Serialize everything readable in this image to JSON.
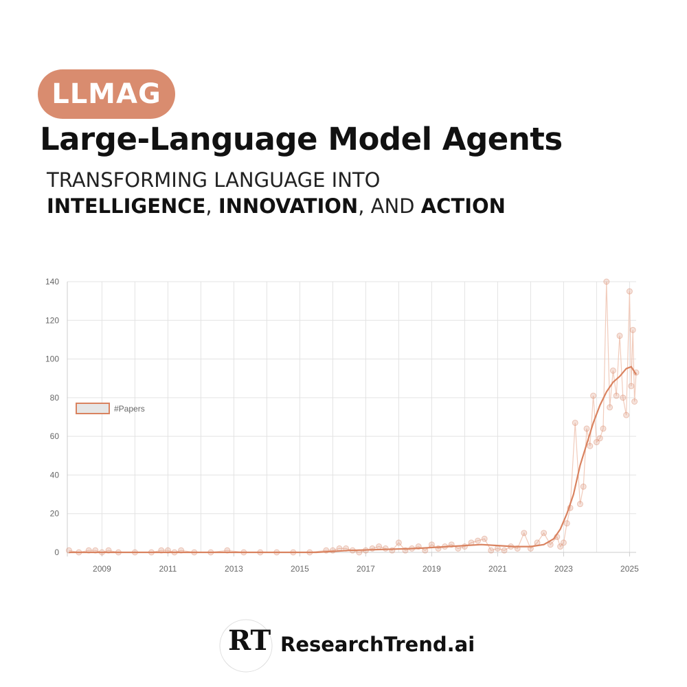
{
  "header": {
    "badge": "LLMAG",
    "title": "Large-Language Model Agents",
    "subtitle_line1": "TRANSFORMING LANGUAGE INTO",
    "subtitle_word1": "INTELLIGENCE",
    "subtitle_sep1": ", ",
    "subtitle_word2": "INNOVATION",
    "subtitle_sep2": ", AND ",
    "subtitle_word3": "ACTION"
  },
  "colors": {
    "accent": "#d98c6f",
    "trend_line": "#d9825f",
    "raw_line": "#f1cbbb",
    "grid": "#e3e3e3"
  },
  "chart_data": {
    "type": "line",
    "legend": {
      "label": "#Papers",
      "position": "left"
    },
    "grid": true,
    "xlim": [
      2007.95,
      2025.2
    ],
    "ylim": [
      0,
      140
    ],
    "x_ticks": [
      "2009",
      "2011",
      "2013",
      "2015",
      "2017",
      "2019",
      "2021",
      "2023",
      "2025"
    ],
    "y_ticks": [
      "0",
      "20",
      "40",
      "60",
      "80",
      "100",
      "120",
      "140"
    ],
    "series": [
      {
        "name": "#Papers",
        "style": "raw",
        "points": [
          [
            2008.0,
            1
          ],
          [
            2008.3,
            0
          ],
          [
            2008.6,
            1
          ],
          [
            2008.8,
            1
          ],
          [
            2009.0,
            0
          ],
          [
            2009.2,
            1
          ],
          [
            2009.5,
            0
          ],
          [
            2010.0,
            0
          ],
          [
            2010.5,
            0
          ],
          [
            2010.8,
            1
          ],
          [
            2011.0,
            1
          ],
          [
            2011.2,
            0
          ],
          [
            2011.4,
            1
          ],
          [
            2011.8,
            0
          ],
          [
            2012.3,
            0
          ],
          [
            2012.8,
            1
          ],
          [
            2013.3,
            0
          ],
          [
            2013.8,
            0
          ],
          [
            2014.3,
            0
          ],
          [
            2014.8,
            0
          ],
          [
            2015.3,
            0
          ],
          [
            2015.8,
            1
          ],
          [
            2016.0,
            1
          ],
          [
            2016.2,
            2
          ],
          [
            2016.4,
            2
          ],
          [
            2016.6,
            1
          ],
          [
            2016.8,
            0
          ],
          [
            2017.0,
            1
          ],
          [
            2017.2,
            2
          ],
          [
            2017.4,
            3
          ],
          [
            2017.6,
            2
          ],
          [
            2017.8,
            1
          ],
          [
            2018.0,
            5
          ],
          [
            2018.2,
            1
          ],
          [
            2018.4,
            2
          ],
          [
            2018.6,
            3
          ],
          [
            2018.8,
            1
          ],
          [
            2019.0,
            4
          ],
          [
            2019.2,
            2
          ],
          [
            2019.4,
            3
          ],
          [
            2019.6,
            4
          ],
          [
            2019.8,
            2
          ],
          [
            2020.0,
            3
          ],
          [
            2020.2,
            5
          ],
          [
            2020.4,
            6
          ],
          [
            2020.6,
            7
          ],
          [
            2020.8,
            1
          ],
          [
            2021.0,
            2
          ],
          [
            2021.2,
            1
          ],
          [
            2021.4,
            3
          ],
          [
            2021.6,
            2
          ],
          [
            2021.8,
            10
          ],
          [
            2022.0,
            2
          ],
          [
            2022.2,
            5
          ],
          [
            2022.4,
            10
          ],
          [
            2022.6,
            4
          ],
          [
            2022.8,
            8
          ],
          [
            2022.9,
            3
          ],
          [
            2023.0,
            5
          ],
          [
            2023.1,
            15
          ],
          [
            2023.2,
            23
          ],
          [
            2023.35,
            67
          ],
          [
            2023.5,
            25
          ],
          [
            2023.6,
            34
          ],
          [
            2023.7,
            64
          ],
          [
            2023.8,
            55
          ],
          [
            2023.9,
            81
          ],
          [
            2024.0,
            57
          ],
          [
            2024.1,
            59
          ],
          [
            2024.2,
            64
          ],
          [
            2024.3,
            140
          ],
          [
            2024.4,
            75
          ],
          [
            2024.5,
            94
          ],
          [
            2024.6,
            81
          ],
          [
            2024.7,
            112
          ],
          [
            2024.8,
            80
          ],
          [
            2024.9,
            71
          ],
          [
            2025.0,
            135
          ],
          [
            2025.05,
            86
          ],
          [
            2025.1,
            115
          ],
          [
            2025.15,
            78
          ],
          [
            2025.2,
            93
          ]
        ]
      },
      {
        "name": "",
        "style": "trend",
        "points": [
          [
            2008.0,
            0
          ],
          [
            2010.0,
            0
          ],
          [
            2012.0,
            0
          ],
          [
            2014.0,
            0
          ],
          [
            2015.5,
            0
          ],
          [
            2016.5,
            1
          ],
          [
            2017.5,
            1.5
          ],
          [
            2018.5,
            2
          ],
          [
            2019.5,
            3
          ],
          [
            2020.5,
            4
          ],
          [
            2021.0,
            3.5
          ],
          [
            2021.5,
            3
          ],
          [
            2022.0,
            3
          ],
          [
            2022.4,
            4
          ],
          [
            2022.7,
            7
          ],
          [
            2022.9,
            12
          ],
          [
            2023.1,
            20
          ],
          [
            2023.3,
            30
          ],
          [
            2023.5,
            45
          ],
          [
            2023.7,
            56
          ],
          [
            2023.9,
            67
          ],
          [
            2024.1,
            76
          ],
          [
            2024.3,
            83
          ],
          [
            2024.5,
            88
          ],
          [
            2024.7,
            91
          ],
          [
            2024.9,
            95
          ],
          [
            2025.05,
            96
          ],
          [
            2025.2,
            92
          ]
        ]
      }
    ]
  },
  "footer": {
    "logo_text": "RT",
    "brand": "ResearchTrend.ai"
  }
}
